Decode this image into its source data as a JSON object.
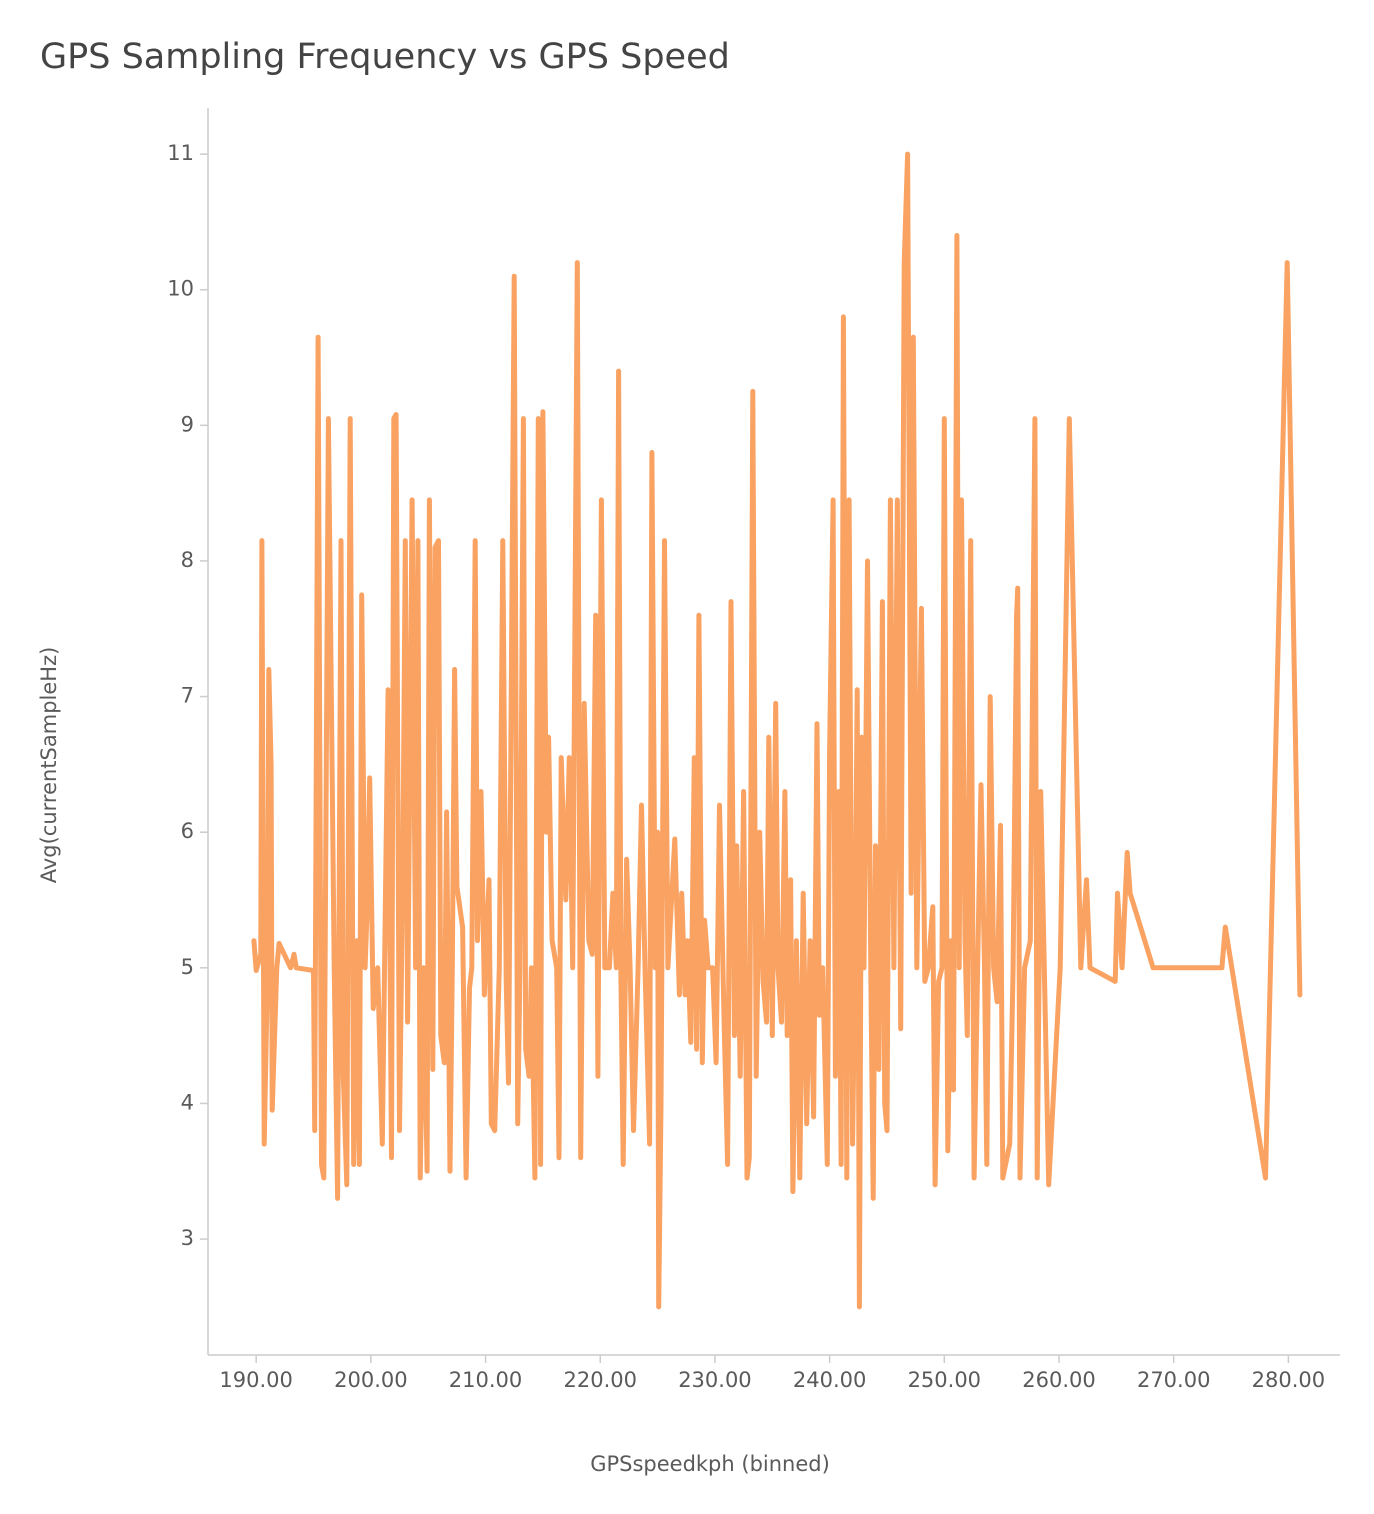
{
  "chart_data": {
    "type": "line",
    "title": "GPS Sampling Frequency vs GPS Speed",
    "xlabel": "GPSspeedkph (binned)",
    "ylabel": "Avg(currentSampleHz)",
    "color": "#f9a262",
    "xlim": [
      185.8,
      284.5
    ],
    "ylim": [
      2.145,
      11.34
    ],
    "xticks": [
      {
        "value": 190,
        "label": "190.00"
      },
      {
        "value": 200,
        "label": "200.00"
      },
      {
        "value": 210,
        "label": "210.00"
      },
      {
        "value": 220,
        "label": "220.00"
      },
      {
        "value": 230,
        "label": "230.00"
      },
      {
        "value": 240,
        "label": "240.00"
      },
      {
        "value": 250,
        "label": "250.00"
      },
      {
        "value": 260,
        "label": "260.00"
      },
      {
        "value": 270,
        "label": "270.00"
      },
      {
        "value": 280,
        "label": "280.00"
      }
    ],
    "yticks": [
      3,
      4,
      5,
      6,
      7,
      8,
      9,
      10,
      11
    ],
    "x": [
      189.8,
      190.0,
      190.4,
      190.5,
      190.7,
      191.0,
      191.1,
      191.3,
      191.4,
      191.8,
      192.0,
      193.0,
      193.3,
      193.5,
      195.0,
      195.1,
      195.4,
      195.7,
      195.9,
      196.3,
      196.8,
      197.1,
      197.4,
      197.6,
      197.9,
      198.2,
      198.5,
      198.8,
      199.0,
      199.2,
      199.5,
      199.7,
      199.9,
      200.2,
      200.6,
      201.0,
      201.5,
      201.8,
      202.0,
      202.2,
      202.5,
      202.8,
      203.0,
      203.2,
      203.6,
      203.9,
      204.1,
      204.3,
      204.6,
      204.9,
      205.1,
      205.4,
      205.6,
      205.9,
      206.1,
      206.4,
      206.6,
      206.9,
      207.1,
      207.3,
      207.5,
      208.0,
      208.3,
      208.6,
      208.8,
      209.1,
      209.3,
      209.6,
      209.9,
      210.3,
      210.5,
      210.8,
      211.2,
      211.5,
      211.8,
      212.0,
      212.5,
      212.8,
      213.0,
      213.3,
      213.5,
      213.8,
      214.0,
      214.3,
      214.6,
      214.8,
      215.0,
      215.3,
      215.5,
      215.8,
      216.2,
      216.4,
      216.6,
      217.0,
      217.3,
      217.6,
      218.0,
      218.3,
      218.6,
      219.0,
      219.3,
      219.6,
      219.8,
      220.1,
      220.4,
      220.8,
      221.1,
      221.4,
      221.6,
      221.8,
      222.0,
      222.3,
      222.6,
      222.9,
      223.3,
      223.6,
      223.9,
      224.3,
      224.5,
      224.8,
      225.0,
      225.1,
      225.3,
      225.6,
      225.9,
      226.5,
      226.9,
      227.1,
      227.4,
      227.6,
      227.9,
      228.2,
      228.4,
      228.6,
      228.9,
      229.1,
      229.4,
      229.8,
      230.1,
      230.4,
      230.8,
      231.1,
      231.4,
      231.7,
      231.9,
      232.2,
      232.5,
      232.8,
      233.0,
      233.3,
      233.6,
      233.9,
      234.2,
      234.5,
      234.7,
      235.0,
      235.3,
      235.5,
      235.8,
      236.1,
      236.3,
      236.6,
      236.8,
      237.1,
      237.4,
      237.7,
      238.0,
      238.3,
      238.6,
      238.9,
      239.1,
      239.4,
      239.8,
      240.0,
      240.3,
      240.5,
      240.8,
      241.0,
      241.2,
      241.5,
      241.7,
      242.0,
      242.2,
      242.4,
      242.6,
      242.8,
      243.0,
      243.3,
      243.6,
      243.8,
      244.0,
      244.3,
      244.6,
      244.8,
      245.0,
      245.3,
      245.6,
      245.9,
      246.2,
      246.5,
      246.8,
      247.1,
      247.3,
      247.6,
      248.0,
      248.3,
      248.6,
      249.0,
      249.2,
      249.5,
      249.8,
      250.0,
      250.3,
      250.6,
      250.8,
      251.1,
      251.3,
      251.5,
      251.8,
      252.0,
      252.3,
      252.6,
      252.9,
      253.2,
      253.5,
      253.7,
      254.0,
      254.3,
      254.6,
      254.9,
      255.1,
      255.7,
      256.0,
      256.3,
      256.4,
      256.6,
      257.0,
      257.5,
      257.9,
      258.1,
      258.4,
      259.1,
      260.1,
      260.9,
      261.9,
      262.4,
      262.7,
      264.9,
      265.1,
      265.5,
      265.95,
      266.2,
      268.2,
      274.2,
      274.5,
      278.0,
      279.9,
      281.0
    ],
    "values": [
      5.2,
      4.98,
      5.1,
      8.15,
      3.7,
      5.0,
      7.2,
      6.5,
      3.95,
      5.0,
      5.18,
      5.0,
      5.1,
      5.0,
      4.98,
      3.8,
      9.65,
      3.55,
      3.45,
      9.05,
      5.0,
      3.3,
      8.15,
      4.2,
      3.4,
      9.05,
      3.55,
      5.2,
      3.55,
      7.75,
      5.0,
      5.5,
      6.4,
      4.7,
      5.0,
      3.7,
      7.05,
      3.6,
      9.05,
      9.08,
      3.8,
      5.9,
      8.15,
      4.6,
      8.45,
      5.0,
      8.15,
      3.45,
      5.0,
      3.5,
      8.45,
      4.25,
      8.1,
      8.15,
      4.5,
      4.3,
      6.15,
      3.5,
      5.0,
      7.2,
      5.6,
      5.3,
      3.45,
      4.85,
      5.0,
      8.15,
      5.2,
      6.3,
      4.8,
      5.65,
      3.85,
      3.8,
      5.0,
      8.15,
      4.9,
      4.15,
      10.1,
      3.85,
      5.0,
      9.05,
      4.4,
      4.2,
      5.0,
      3.45,
      9.05,
      3.55,
      9.1,
      6.0,
      6.7,
      5.2,
      5.0,
      3.6,
      6.55,
      5.5,
      6.55,
      5.0,
      10.2,
      3.6,
      6.95,
      5.2,
      5.1,
      7.6,
      4.2,
      8.45,
      5.0,
      5.0,
      5.55,
      5.0,
      9.4,
      4.95,
      3.55,
      5.8,
      5.0,
      3.8,
      5.0,
      6.2,
      5.0,
      3.7,
      8.8,
      5.0,
      6.0,
      2.5,
      4.0,
      8.15,
      5.0,
      5.95,
      4.8,
      5.55,
      4.8,
      5.2,
      4.45,
      6.55,
      4.4,
      7.6,
      4.3,
      5.35,
      5.0,
      5.0,
      4.3,
      6.2,
      4.6,
      3.55,
      7.7,
      4.5,
      5.9,
      4.2,
      6.3,
      3.45,
      3.6,
      9.25,
      4.2,
      6.0,
      4.9,
      4.6,
      6.7,
      4.5,
      6.95,
      5.0,
      4.6,
      6.3,
      4.5,
      5.65,
      3.35,
      5.2,
      3.45,
      5.55,
      3.85,
      5.2,
      3.9,
      6.8,
      4.65,
      5.0,
      3.55,
      6.6,
      8.45,
      4.2,
      6.3,
      3.55,
      9.8,
      3.45,
      8.45,
      3.7,
      5.0,
      7.05,
      2.5,
      6.7,
      5.0,
      8.0,
      4.9,
      3.3,
      5.9,
      4.25,
      7.7,
      4.0,
      3.8,
      8.45,
      5.0,
      8.45,
      4.55,
      10.2,
      11.0,
      5.55,
      9.65,
      5.0,
      7.65,
      4.9,
      5.0,
      5.45,
      3.4,
      4.9,
      5.0,
      9.05,
      3.65,
      5.2,
      4.1,
      10.4,
      5.0,
      8.45,
      5.2,
      4.5,
      8.15,
      3.45,
      5.0,
      6.35,
      5.0,
      3.55,
      7.0,
      5.0,
      4.75,
      6.05,
      3.45,
      3.7,
      5.0,
      7.6,
      7.8,
      3.45,
      5.0,
      5.2,
      9.05,
      3.45,
      6.3,
      3.4,
      5.0,
      9.05,
      5.0,
      5.65,
      5.0,
      4.9,
      5.55,
      5.0,
      5.85,
      5.55,
      5.0,
      5.0,
      5.3,
      3.45,
      10.2,
      4.8
    ]
  }
}
